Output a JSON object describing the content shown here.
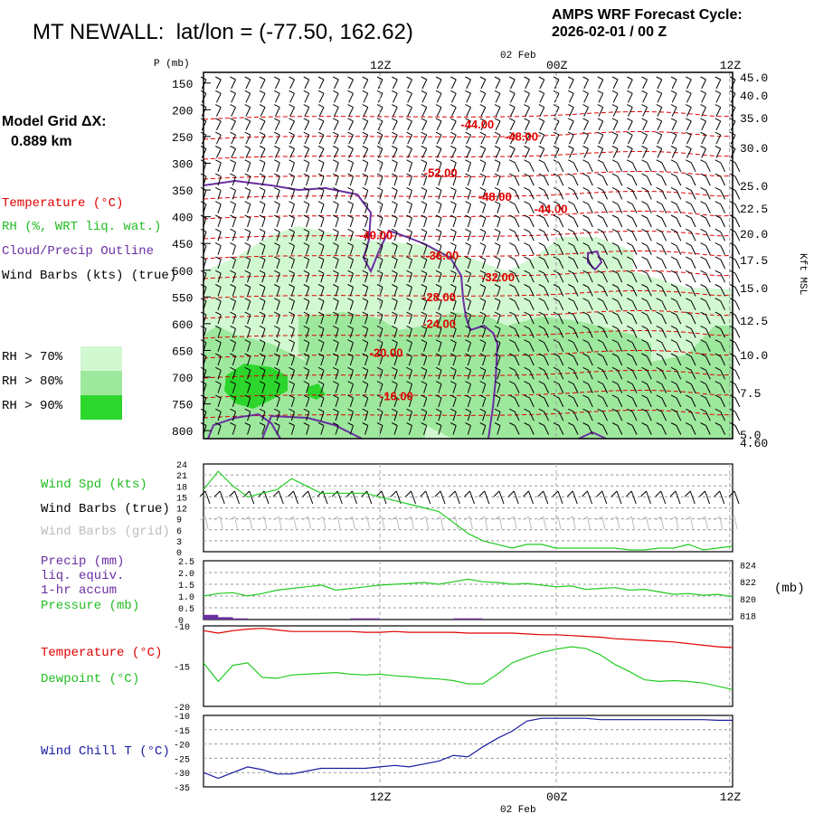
{
  "header": {
    "station": "MT NEWALL:",
    "latlon": "lat/lon = (-77.50, 162.62)",
    "cycle_line1": "AMPS WRF Forecast Cycle:",
    "cycle_line2": "2026-02-01 / 00  Z"
  },
  "grid": {
    "label": "Model Grid ΔX:",
    "value": "0.889 km"
  },
  "legend": {
    "temperature": "Temperature (°C)",
    "rh": "RH (%, WRT liq. wat.)",
    "cloud": "Cloud/Precip Outline",
    "wind": "Wind Barbs (kts) (true)",
    "rh70": "RH > 70%",
    "rh80": "RH > 80%",
    "rh90": "RH > 90%"
  },
  "colors": {
    "rh70": "#d2f8d2",
    "rh80": "#9ee89e",
    "rh90": "#2cd62c",
    "temp": "#e00000",
    "rh_text": "#22bb22",
    "cloud": "#6a2fa0",
    "wind_line": "#22cc22",
    "dewpoint": "#22cc22",
    "windchill": "#1a1aa0",
    "precip": "#6a2fa0"
  },
  "time_axis": {
    "labels": [
      "12Z",
      "00Z",
      "12Z"
    ],
    "date_label": "02 Feb"
  },
  "pressure_axis": {
    "title": "P (mb)",
    "ticks": [
      "150",
      "200",
      "250",
      "300",
      "350",
      "400",
      "450",
      "500",
      "550",
      "600",
      "650",
      "700",
      "750",
      "800"
    ]
  },
  "height_axis": {
    "title": "Kft MSL",
    "ticks": [
      "45.0",
      "40.0",
      "35.0",
      "30.0",
      "25.0",
      "22.5",
      "20.0",
      "17.5",
      "15.0",
      "12.5",
      "10.0",
      "7.5",
      "5.0",
      "4.60"
    ]
  },
  "chart_data": [
    {
      "type": "heatmap",
      "name": "time-height cross section",
      "hours": [
        0,
        36
      ],
      "pressure_range_mb": [
        130,
        815
      ],
      "temperature_contours_C": [
        {
          "label": "-44.00",
          "hour": 17.5,
          "p": 235
        },
        {
          "label": "-48.00",
          "hour": 20.5,
          "p": 258
        },
        {
          "label": "-52.00",
          "hour": 15.0,
          "p": 325
        },
        {
          "label": "-48.00",
          "hour": 18.7,
          "p": 370
        },
        {
          "label": "-44.00",
          "hour": 22.5,
          "p": 393
        },
        {
          "label": "-40.00",
          "hour": 10.6,
          "p": 442
        },
        {
          "label": "-36.00",
          "hour": 15.1,
          "p": 480
        },
        {
          "label": "-32.00",
          "hour": 18.9,
          "p": 521
        },
        {
          "label": "-28.00",
          "hour": 14.9,
          "p": 558
        },
        {
          "label": "-24.00",
          "hour": 14.9,
          "p": 608
        },
        {
          "label": "-20.00",
          "hour": 11.3,
          "p": 662
        },
        {
          "label": "-16.00",
          "hour": 12.0,
          "p": 743
        }
      ]
    },
    {
      "type": "line",
      "name": "wind speed",
      "ylabel": "Wind Spd (kts)",
      "yticks": [
        "24",
        "21",
        "18",
        "15",
        "12",
        "9",
        "6",
        "3",
        "0"
      ],
      "ylim": [
        0,
        24
      ],
      "x": [
        0,
        1,
        2,
        3,
        4,
        5,
        6,
        7,
        8,
        9,
        10,
        11,
        12,
        13,
        14,
        15,
        16,
        17,
        18,
        19,
        20,
        21,
        22,
        23,
        24,
        25,
        26,
        27,
        28,
        29,
        30,
        31,
        32,
        33,
        34,
        35,
        36
      ],
      "values": [
        17,
        22,
        18,
        15,
        16,
        17,
        20,
        18,
        16,
        16,
        16,
        16,
        15,
        14,
        13,
        12,
        11,
        8,
        5,
        3,
        2,
        1,
        2,
        2,
        1,
        1,
        1,
        1,
        1,
        0.5,
        0.5,
        1,
        1,
        2,
        0.5,
        1,
        1.5
      ]
    },
    {
      "type": "line",
      "name": "precip and pressure",
      "labels": [
        "Precip (mm)",
        "liq. equiv.",
        "1-hr accum",
        "Pressure (mb)"
      ],
      "left_ticks": [
        "2.5",
        "2.0",
        "1.5",
        "1.0",
        "0.5",
        "0"
      ],
      "right_ticks": [
        "824",
        "822",
        "820",
        "818"
      ],
      "right_unit": "(mb)",
      "ylim_precip": [
        0,
        2.5
      ],
      "ylim_pressure": [
        817.5,
        824.5
      ],
      "x": [
        0,
        1,
        2,
        3,
        4,
        5,
        6,
        7,
        8,
        9,
        10,
        11,
        12,
        13,
        14,
        15,
        16,
        17,
        18,
        19,
        20,
        21,
        22,
        23,
        24,
        25,
        26,
        27,
        28,
        29,
        30,
        31,
        32,
        33,
        34,
        35,
        36
      ],
      "pressure": [
        820.3,
        820.6,
        820.7,
        820.3,
        820.6,
        821.0,
        821.2,
        821.4,
        821.6,
        821.0,
        821.2,
        821.4,
        821.6,
        821.7,
        821.8,
        821.9,
        821.7,
        822.0,
        822.3,
        822.0,
        821.9,
        821.7,
        821.8,
        821.6,
        821.4,
        821.5,
        821.1,
        821.2,
        821.3,
        821.0,
        821.1,
        820.8,
        820.5,
        820.6,
        820.4,
        820.5,
        820.2
      ],
      "precip": [
        0.2,
        0.1,
        0.05,
        0,
        0,
        0,
        0,
        0,
        0,
        0,
        0.05,
        0.05,
        0,
        0,
        0,
        0,
        0,
        0.05,
        0.05,
        0,
        0,
        0,
        0,
        0,
        0,
        0,
        0,
        0,
        0,
        0,
        0,
        0,
        0,
        0,
        0,
        0,
        0
      ]
    },
    {
      "type": "line",
      "name": "temperature and dewpoint",
      "labels": [
        "Temperature (°C)",
        "Dewpoint (°C)"
      ],
      "yticks": [
        "-10",
        "-15",
        "-20"
      ],
      "ylim": [
        -20,
        -10
      ],
      "x": [
        0,
        1,
        2,
        3,
        4,
        5,
        6,
        7,
        8,
        9,
        10,
        11,
        12,
        13,
        14,
        15,
        16,
        17,
        18,
        19,
        20,
        21,
        22,
        23,
        24,
        25,
        26,
        27,
        28,
        29,
        30,
        31,
        32,
        33,
        34,
        35,
        36
      ],
      "temperature": [
        -10.6,
        -10.9,
        -10.6,
        -10.4,
        -10.3,
        -10.5,
        -10.7,
        -10.7,
        -10.7,
        -10.7,
        -10.7,
        -10.8,
        -10.8,
        -10.7,
        -10.8,
        -10.8,
        -10.8,
        -10.8,
        -10.9,
        -10.9,
        -10.9,
        -10.9,
        -11.0,
        -11.1,
        -11.1,
        -11.2,
        -11.3,
        -11.4,
        -11.6,
        -11.7,
        -11.8,
        -11.9,
        -12.0,
        -12.2,
        -12.4,
        -12.6,
        -12.7
      ],
      "dewpoint": [
        -14.6,
        -16.9,
        -14.9,
        -14.6,
        -16.4,
        -16.5,
        -16.1,
        -16.0,
        -15.9,
        -15.8,
        -16.0,
        -16.1,
        -16.0,
        -16.2,
        -16.3,
        -16.5,
        -16.6,
        -16.8,
        -17.2,
        -17.2,
        -16.0,
        -14.6,
        -13.9,
        -13.3,
        -12.9,
        -12.6,
        -12.8,
        -13.6,
        -14.8,
        -15.7,
        -16.7,
        -16.9,
        -16.8,
        -16.9,
        -17.1,
        -17.5,
        -17.9
      ]
    },
    {
      "type": "line",
      "name": "wind chill",
      "label": "Wind Chill T (°C)",
      "yticks": [
        "-10",
        "-15",
        "-20",
        "-25",
        "-30",
        "-35"
      ],
      "ylim": [
        -35,
        -10
      ],
      "x": [
        0,
        1,
        2,
        3,
        4,
        5,
        6,
        7,
        8,
        9,
        10,
        11,
        12,
        13,
        14,
        15,
        16,
        17,
        18,
        19,
        20,
        21,
        22,
        23,
        24,
        25,
        26,
        27,
        28,
        29,
        30,
        31,
        32,
        33,
        34,
        35,
        36
      ],
      "values": [
        -30,
        -32,
        -30,
        -28,
        -29,
        -30.5,
        -30.5,
        -29.5,
        -28.5,
        -28.5,
        -28.5,
        -28.5,
        -28,
        -27.5,
        -28,
        -27,
        -26,
        -24,
        -24.5,
        -21,
        -18,
        -15.5,
        -12,
        -11,
        -11,
        -11,
        -11,
        -11.5,
        -11.5,
        -11.5,
        -11.5,
        -11.5,
        -11.5,
        -11.5,
        -11.5,
        -11.7,
        -11.7
      ]
    }
  ],
  "lower_legends": {
    "wind_spd": "Wind Spd (kts)",
    "wind_true": "Wind Barbs (true)",
    "wind_grid": "Wind Barbs (grid)"
  }
}
